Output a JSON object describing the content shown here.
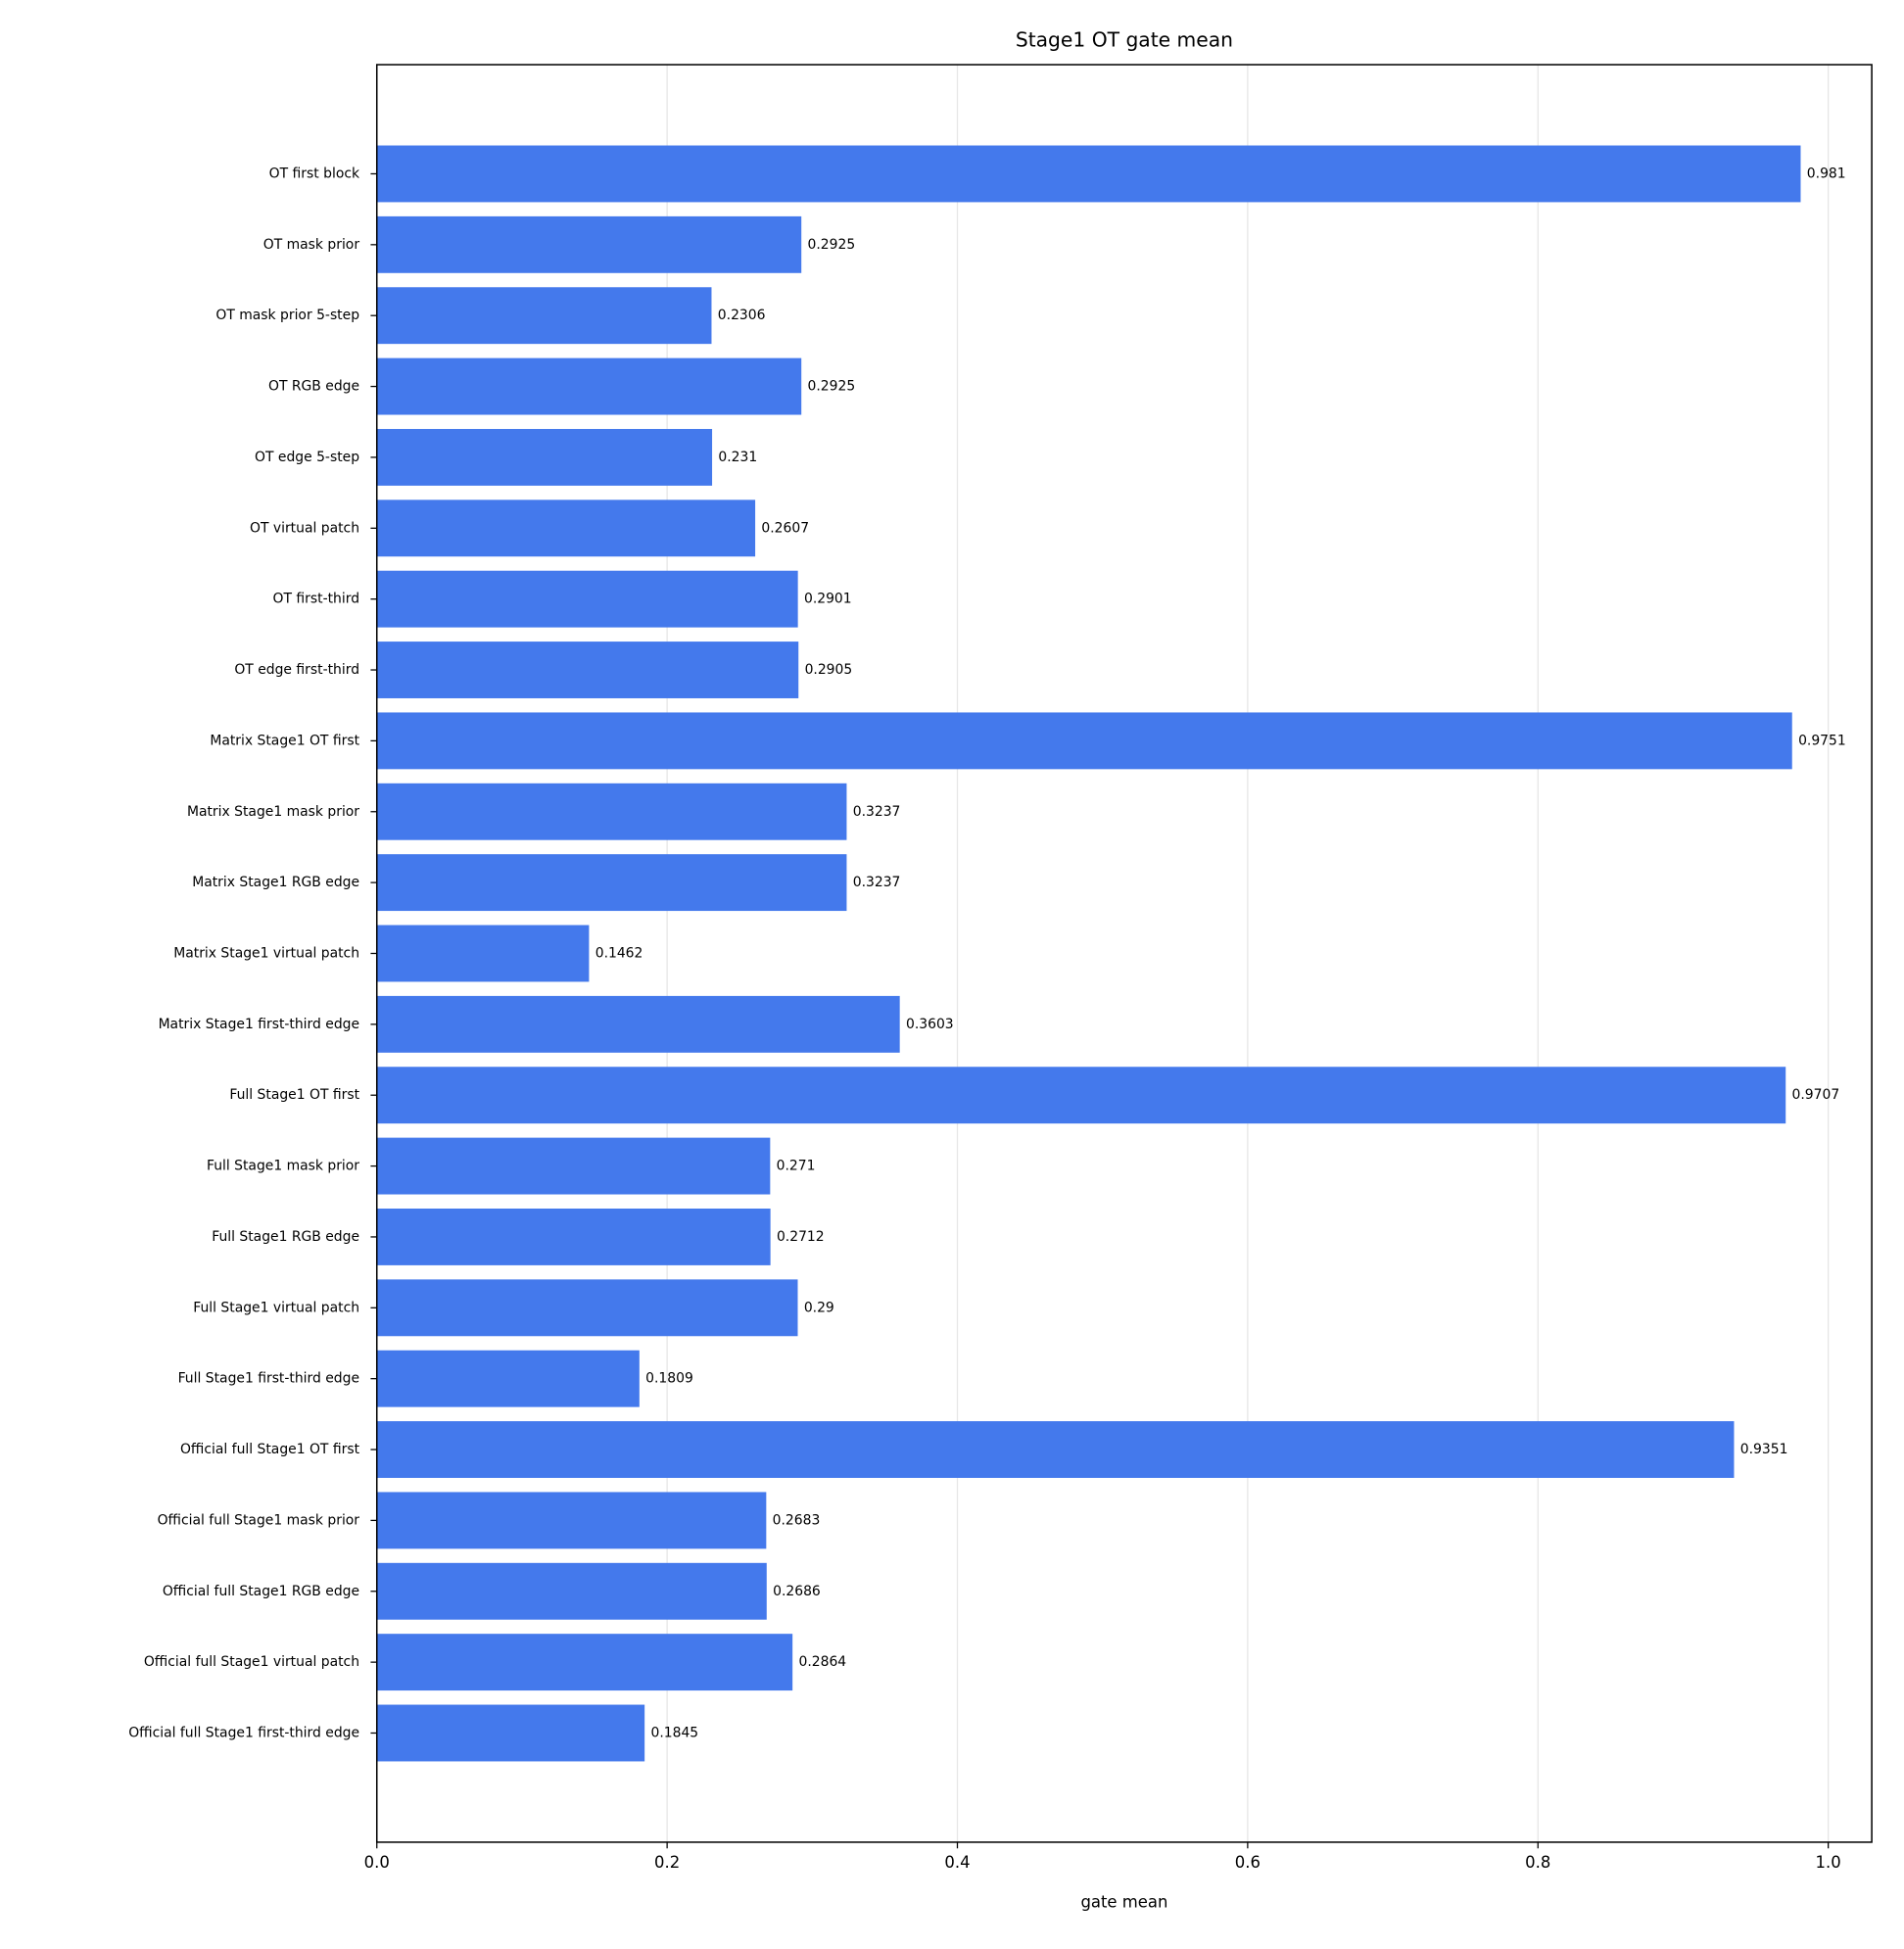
{
  "chart_data": {
    "type": "barh",
    "title": "Stage1 OT gate mean",
    "x_label": "gate mean",
    "categories": [
      "OT first block",
      "OT mask prior",
      "OT mask prior 5-step",
      "OT RGB edge",
      "OT edge 5-step",
      "OT virtual patch",
      "OT first-third",
      "OT edge first-third",
      "Matrix Stage1 OT first",
      "Matrix Stage1 mask prior",
      "Matrix Stage1 RGB edge",
      "Matrix Stage1 virtual patch",
      "Matrix Stage1 first-third edge",
      "Full Stage1 OT first",
      "Full Stage1 mask prior",
      "Full Stage1 RGB edge",
      "Full Stage1 virtual patch",
      "Full Stage1 first-third edge",
      "Official full Stage1 OT first",
      "Official full Stage1 mask prior",
      "Official full Stage1 RGB edge",
      "Official full Stage1 virtual patch",
      "Official full Stage1 first-third edge"
    ],
    "values": [
      0.981,
      0.2925,
      0.2306,
      0.2925,
      0.231,
      0.2607,
      0.2901,
      0.2905,
      0.9751,
      0.3237,
      0.3237,
      0.1462,
      0.3603,
      0.9707,
      0.271,
      0.2712,
      0.29,
      0.1809,
      0.9351,
      0.2683,
      0.2686,
      0.2864,
      0.1845
    ],
    "color": "#4479ec",
    "xlim": [
      0,
      1.03
    ],
    "xticks": [
      {
        "value": 0,
        "label": "0.0"
      },
      0.2,
      0.4,
      0.6,
      0.8,
      {
        "value": 1,
        "label": "1.0"
      }
    ],
    "grid": true
  }
}
